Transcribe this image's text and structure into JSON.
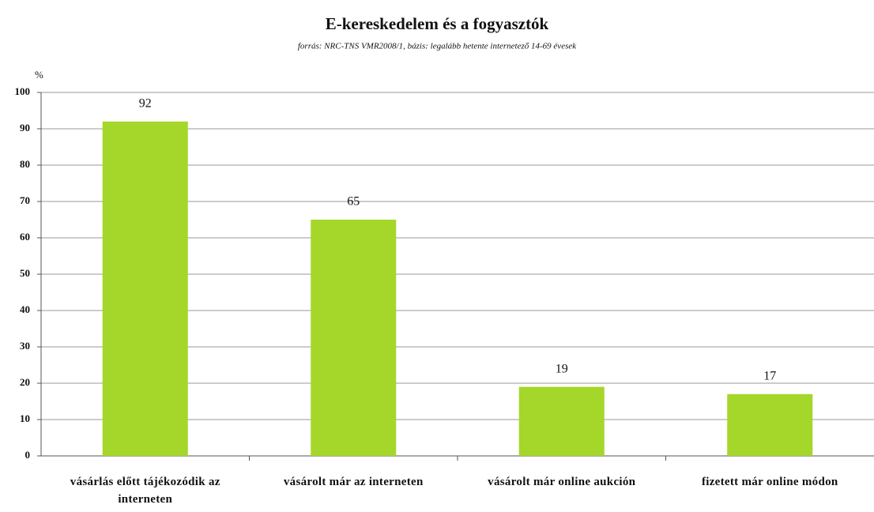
{
  "chart_data": {
    "type": "bar",
    "title": "E-kereskedelem és a fogyasztók",
    "subtitle": "forrás: NRC-TNS VMR2008/1, bázis: legalább hetente internetező 14-69 évesek",
    "y_label": "%",
    "categories": [
      "vásárlás előtt tájékozódik az interneten",
      "vásárolt már az interneten",
      "vásárolt már online aukción",
      "fizetett már online módon"
    ],
    "values": [
      92,
      65,
      19,
      17
    ],
    "color": "#a5d62a",
    "ylim": [
      0,
      100
    ],
    "yticks": [
      0,
      10,
      20,
      30,
      40,
      50,
      60,
      70,
      80,
      90,
      100
    ],
    "grid": true
  }
}
